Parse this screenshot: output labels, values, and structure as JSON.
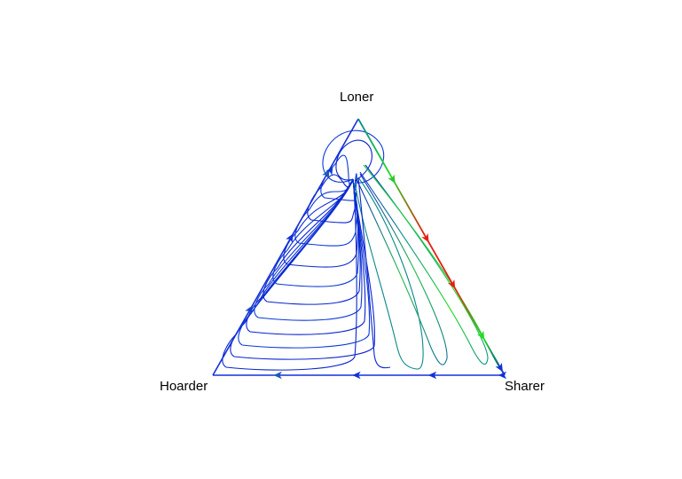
{
  "vertices": {
    "top": "Loner",
    "left": "Hoarder",
    "right": "Sharer"
  },
  "colors": {
    "edge": "#1530d8",
    "flow_slow": "#0a24d0",
    "flow_mid": "#0a8a8a",
    "flow_fast": "#22dd22",
    "flow_fastest": "#e81d0f"
  }
}
